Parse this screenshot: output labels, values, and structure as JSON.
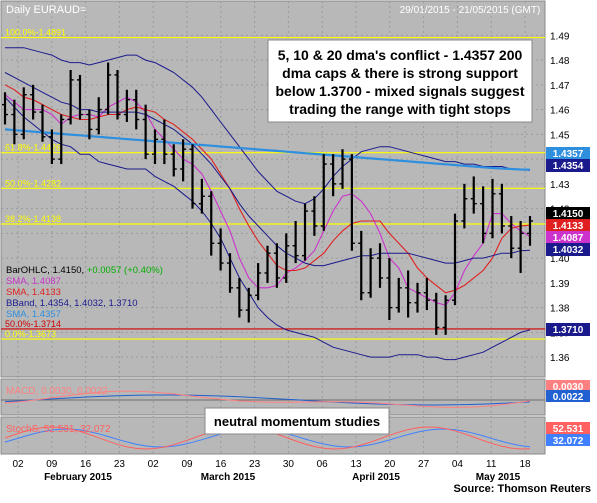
{
  "header": {
    "title": "Daily EURAUD=",
    "date_range": "29/01/2015 - 21/05/2015 (GMT)"
  },
  "callouts": {
    "main": [
      "5, 10 & 20 dma's conflict - 1.4357 200",
      "dma caps & there is strong support",
      "below 1.3700 - mixed signals suggest",
      "trading the range with tight stops"
    ],
    "momentum": "neutral momentum studies"
  },
  "source": "Source: Thomson Reuters",
  "colors": {
    "background": "#b8b8b8",
    "fib_line": "#ffff00",
    "support_line": "#d00000",
    "ohlc": "#000000",
    "sma5": "#cc33cc",
    "sma10": "#e02020",
    "bband": "#1a1a8c",
    "sma200": "#2f8fdf",
    "macd": "#ff8080",
    "macd_signal": "#2060d0",
    "stoch_k": "#ff6060",
    "stoch_d": "#4080ff"
  },
  "chart_data": [
    {
      "type": "ohlc",
      "title": "Daily EURAUD=",
      "y_ticks": [
        "1.49",
        "1.48",
        "1.47",
        "1.46",
        "1.45",
        "1.44",
        "1.43",
        "1.42",
        "1.41",
        "1.40",
        "1.39",
        "1.38",
        "1.37",
        "1.36"
      ],
      "ylim": [
        1.354,
        1.497
      ],
      "x_ticks": [
        "02",
        "09",
        "16",
        "23",
        "02",
        "09",
        "16",
        "23",
        "30",
        "06",
        "13",
        "20",
        "27",
        "04",
        "11",
        "18"
      ],
      "month_labels": [
        "February 2015",
        "March 2015",
        "April 2015",
        "May 2015"
      ],
      "fib_levels": [
        {
          "label": "100.0%-1.4891",
          "value": 1.4891
        },
        {
          "label": "61.8%-1.4426",
          "value": 1.4426
        },
        {
          "label": "50.0%-1.4282",
          "value": 1.4282
        },
        {
          "label": "38.2%-1.4138",
          "value": 1.4138
        },
        {
          "label": "50.0%-1.3714",
          "value": 1.3714
        },
        {
          "label": "0.0%-1.3673",
          "value": 1.3673
        }
      ],
      "price_tags": [
        {
          "label": "1.4357",
          "value": 1.4357,
          "color": "#2f8fdf"
        },
        {
          "label": "1.4354",
          "value": 1.4354,
          "color": "#1a1a8c"
        },
        {
          "label": "1.4150",
          "value": 1.415,
          "color": "#000000"
        },
        {
          "label": "1.4133",
          "value": 1.4133,
          "color": "#e02020"
        },
        {
          "label": "1.4087",
          "value": 1.4087,
          "color": "#cc33cc"
        },
        {
          "label": "1.4032",
          "value": 1.4032,
          "color": "#1a1a8c"
        },
        {
          "label": "1.3710",
          "value": 1.371,
          "color": "#1a1a8c"
        }
      ],
      "legend": [
        {
          "prefix": "BarOHLC, 1.4150, ",
          "extra": "+0.0057 (+0.40%)",
          "color": "#000000",
          "extra_color": "#00b000"
        },
        {
          "prefix": "SMA, 1.4087",
          "extra": "",
          "color": "#cc33cc",
          "extra_color": ""
        },
        {
          "prefix": "SMA, 1.4133",
          "extra": "",
          "color": "#e02020",
          "extra_color": ""
        },
        {
          "prefix": "BBand, 1.4354, 1.4032, 1.3710",
          "extra": "",
          "color": "#1a1a8c",
          "extra_color": ""
        },
        {
          "prefix": "SMA, 1.4357",
          "extra": "",
          "color": "#2f8fdf",
          "extra_color": ""
        }
      ],
      "series": [
        {
          "name": "BarOHLC",
          "ohlc": [
            [
              1.462,
              1.467,
              1.454,
              1.458
            ],
            [
              1.458,
              1.464,
              1.446,
              1.45
            ],
            [
              1.45,
              1.469,
              1.448,
              1.466
            ],
            [
              1.466,
              1.47,
              1.456,
              1.459
            ],
            [
              1.459,
              1.462,
              1.447,
              1.449
            ],
            [
              1.449,
              1.452,
              1.438,
              1.44
            ],
            [
              1.44,
              1.458,
              1.438,
              1.456
            ],
            [
              1.456,
              1.476,
              1.454,
              1.472
            ],
            [
              1.472,
              1.474,
              1.456,
              1.458
            ],
            [
              1.458,
              1.46,
              1.448,
              1.452
            ],
            [
              1.452,
              1.465,
              1.45,
              1.46
            ],
            [
              1.46,
              1.479,
              1.458,
              1.474
            ],
            [
              1.474,
              1.476,
              1.456,
              1.458
            ],
            [
              1.458,
              1.468,
              1.455,
              1.464
            ],
            [
              1.464,
              1.468,
              1.452,
              1.456
            ],
            [
              1.456,
              1.462,
              1.44,
              1.442
            ],
            [
              1.442,
              1.452,
              1.438,
              1.448
            ],
            [
              1.448,
              1.456,
              1.438,
              1.442
            ],
            [
              1.442,
              1.446,
              1.433,
              1.436
            ],
            [
              1.436,
              1.448,
              1.431,
              1.444
            ],
            [
              1.444,
              1.446,
              1.42,
              1.422
            ],
            [
              1.422,
              1.432,
              1.418,
              1.425
            ],
            [
              1.425,
              1.427,
              1.401,
              1.406
            ],
            [
              1.406,
              1.412,
              1.395,
              1.398
            ],
            [
              1.398,
              1.402,
              1.386,
              1.388
            ],
            [
              1.388,
              1.392,
              1.376,
              1.379
            ],
            [
              1.379,
              1.388,
              1.374,
              1.385
            ],
            [
              1.385,
              1.398,
              1.383,
              1.394
            ],
            [
              1.394,
              1.405,
              1.39,
              1.402
            ],
            [
              1.402,
              1.406,
              1.388,
              1.392
            ],
            [
              1.392,
              1.41,
              1.39,
              1.405
            ],
            [
              1.405,
              1.415,
              1.398,
              1.401
            ],
            [
              1.401,
              1.422,
              1.399,
              1.419
            ],
            [
              1.419,
              1.425,
              1.409,
              1.413
            ],
            [
              1.413,
              1.442,
              1.411,
              1.438
            ],
            [
              1.438,
              1.442,
              1.425,
              1.43
            ],
            [
              1.43,
              1.444,
              1.428,
              1.44
            ],
            [
              1.44,
              1.442,
              1.403,
              1.406
            ],
            [
              1.406,
              1.411,
              1.383,
              1.386
            ],
            [
              1.386,
              1.404,
              1.384,
              1.4
            ],
            [
              1.4,
              1.406,
              1.388,
              1.392
            ],
            [
              1.392,
              1.4,
              1.375,
              1.38
            ],
            [
              1.38,
              1.392,
              1.378,
              1.388
            ],
            [
              1.388,
              1.395,
              1.376,
              1.382
            ],
            [
              1.382,
              1.39,
              1.378,
              1.386
            ],
            [
              1.386,
              1.392,
              1.379,
              1.383
            ],
            [
              1.383,
              1.386,
              1.369,
              1.372
            ],
            [
              1.372,
              1.385,
              1.369,
              1.383
            ],
            [
              1.383,
              1.418,
              1.381,
              1.415
            ],
            [
              1.415,
              1.43,
              1.412,
              1.424
            ],
            [
              1.424,
              1.433,
              1.418,
              1.422
            ],
            [
              1.422,
              1.429,
              1.406,
              1.41
            ],
            [
              1.41,
              1.432,
              1.408,
              1.426
            ],
            [
              1.426,
              1.43,
              1.41,
              1.413
            ],
            [
              1.413,
              1.417,
              1.4,
              1.404
            ],
            [
              1.404,
              1.415,
              1.394,
              1.41
            ],
            [
              1.41,
              1.417,
              1.405,
              1.415
            ]
          ]
        },
        {
          "name": "SMA, 1.4087",
          "values": [
            1.466,
            1.463,
            1.46,
            1.46,
            1.46,
            1.458,
            1.454,
            1.457,
            1.458,
            1.458,
            1.457,
            1.461,
            1.463,
            1.465,
            1.463,
            1.459,
            1.452,
            1.448,
            1.444,
            1.44,
            1.438,
            1.434,
            1.427,
            1.419,
            1.411,
            1.4,
            1.392,
            1.388,
            1.388,
            1.389,
            1.394,
            1.396,
            1.399,
            1.403,
            1.411,
            1.419,
            1.425,
            1.426,
            1.423,
            1.418,
            1.41,
            1.4,
            1.396,
            1.388,
            1.386,
            1.384,
            1.382,
            1.381,
            1.386,
            1.395,
            1.401,
            1.406,
            1.418,
            1.418,
            1.414,
            1.411,
            1.4087
          ]
        },
        {
          "name": "SMA, 1.4133",
          "values": [
            1.47,
            1.468,
            1.465,
            1.464,
            1.462,
            1.46,
            1.458,
            1.457,
            1.456,
            1.456,
            1.457,
            1.458,
            1.458,
            1.46,
            1.461,
            1.46,
            1.459,
            1.456,
            1.454,
            1.451,
            1.448,
            1.444,
            1.44,
            1.434,
            1.428,
            1.42,
            1.413,
            1.407,
            1.402,
            1.397,
            1.395,
            1.395,
            1.396,
            1.399,
            1.402,
            1.407,
            1.411,
            1.414,
            1.415,
            1.415,
            1.415,
            1.41,
            1.406,
            1.402,
            1.396,
            1.392,
            1.389,
            1.386,
            1.387,
            1.389,
            1.392,
            1.395,
            1.4,
            1.408,
            1.412,
            1.413,
            1.4133
          ]
        },
        {
          "name": "BBand upper",
          "values": [
            1.485,
            1.485,
            1.485,
            1.484,
            1.483,
            1.482,
            1.48,
            1.479,
            1.479,
            1.478,
            1.479,
            1.48,
            1.481,
            1.482,
            1.482,
            1.48,
            1.479,
            1.477,
            1.475,
            1.472,
            1.469,
            1.465,
            1.46,
            1.455,
            1.45,
            1.445,
            1.44,
            1.435,
            1.431,
            1.427,
            1.425,
            1.423,
            1.422,
            1.424,
            1.428,
            1.433,
            1.437,
            1.44,
            1.443,
            1.444,
            1.445,
            1.445,
            1.444,
            1.443,
            1.442,
            1.441,
            1.44,
            1.439,
            1.439,
            1.438,
            1.438,
            1.437,
            1.437,
            1.437,
            1.436,
            1.436,
            1.4354
          ]
        },
        {
          "name": "BBand middle",
          "values": [
            1.475,
            1.473,
            1.471,
            1.469,
            1.467,
            1.465,
            1.463,
            1.462,
            1.46,
            1.46,
            1.459,
            1.459,
            1.459,
            1.459,
            1.459,
            1.458,
            1.456,
            1.454,
            1.452,
            1.449,
            1.446,
            1.442,
            1.438,
            1.433,
            1.428,
            1.422,
            1.417,
            1.413,
            1.409,
            1.405,
            1.402,
            1.4,
            1.398,
            1.397,
            1.397,
            1.398,
            1.399,
            1.4,
            1.401,
            1.401,
            1.402,
            1.402,
            1.402,
            1.402,
            1.401,
            1.4,
            1.399,
            1.398,
            1.398,
            1.399,
            1.4,
            1.4,
            1.401,
            1.402,
            1.402,
            1.403,
            1.4032
          ]
        },
        {
          "name": "BBand lower",
          "values": [
            1.465,
            1.461,
            1.457,
            1.454,
            1.451,
            1.448,
            1.446,
            1.445,
            1.442,
            1.442,
            1.439,
            1.438,
            1.437,
            1.436,
            1.436,
            1.436,
            1.433,
            1.431,
            1.429,
            1.426,
            1.423,
            1.419,
            1.414,
            1.408,
            1.4,
            1.392,
            1.386,
            1.38,
            1.376,
            1.373,
            1.371,
            1.37,
            1.369,
            1.368,
            1.366,
            1.364,
            1.363,
            1.362,
            1.361,
            1.36,
            1.36,
            1.36,
            1.361,
            1.361,
            1.361,
            1.36,
            1.36,
            1.359,
            1.359,
            1.36,
            1.361,
            1.362,
            1.364,
            1.366,
            1.368,
            1.37,
            1.371
          ]
        },
        {
          "name": "SMA, 1.4357",
          "values": [
            1.452,
            1.4517,
            1.4514,
            1.4511,
            1.4508,
            1.4505,
            1.4502,
            1.4499,
            1.4496,
            1.4493,
            1.449,
            1.4487,
            1.4484,
            1.4481,
            1.4478,
            1.4475,
            1.4472,
            1.4469,
            1.4466,
            1.4463,
            1.446,
            1.4457,
            1.4454,
            1.4451,
            1.4448,
            1.4445,
            1.4442,
            1.4439,
            1.4436,
            1.4433,
            1.443,
            1.4427,
            1.4424,
            1.4421,
            1.4418,
            1.4415,
            1.4412,
            1.4409,
            1.4406,
            1.4403,
            1.44,
            1.4397,
            1.4394,
            1.4391,
            1.4388,
            1.4385,
            1.4382,
            1.4379,
            1.4376,
            1.4373,
            1.437,
            1.4367,
            1.4364,
            1.4362,
            1.436,
            1.4358,
            1.4357
          ]
        }
      ]
    },
    {
      "type": "line",
      "title": "MACD",
      "legend_text": "MACD, 0.0030, 0.0022",
      "tags": [
        {
          "label": "0.0030",
          "color": "#ff8080"
        },
        {
          "label": "0.0022",
          "color": "#2060d0"
        }
      ]
    },
    {
      "type": "line",
      "title": "StochS",
      "legend_text": "StochS, 52.531, 32.072",
      "tags": [
        {
          "label": "52.531",
          "color": "#ff6060"
        },
        {
          "label": "32.072",
          "color": "#4080ff"
        }
      ]
    }
  ]
}
